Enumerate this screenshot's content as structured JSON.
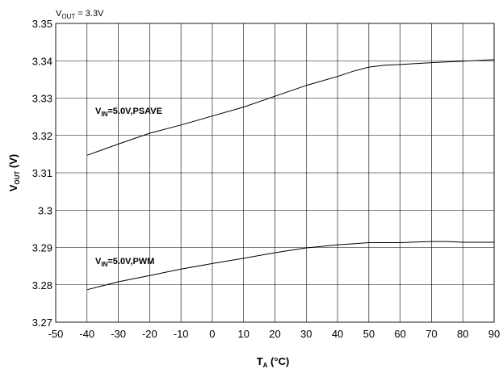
{
  "chart_data": {
    "type": "line",
    "annotation": {
      "main": "V",
      "sub": "OUT",
      "rest": " = 3.3V"
    },
    "xlabel": {
      "main": "T",
      "sub": "A",
      "rest": " (°C)"
    },
    "ylabel": {
      "main": "V",
      "sub": "OUT",
      "rest": " (V)"
    },
    "xlim": [
      -50,
      90
    ],
    "ylim": [
      3.27,
      3.35
    ],
    "x_ticks": [
      -50,
      -40,
      -30,
      -20,
      -10,
      0,
      10,
      20,
      30,
      40,
      50,
      60,
      70,
      80,
      90
    ],
    "x_tick_labels": [
      "-50",
      "-40",
      "-30",
      "-20",
      "-10",
      "0",
      "10",
      "20",
      "30",
      "40",
      "50",
      "60",
      "70",
      "80",
      "90"
    ],
    "y_ticks": [
      3.27,
      3.28,
      3.29,
      3.3,
      3.31,
      3.32,
      3.33,
      3.34,
      3.35
    ],
    "y_tick_labels": [
      "3.27",
      "3.28",
      "3.29",
      "3.3",
      "3.31",
      "3.32",
      "3.33",
      "3.34",
      "3.35"
    ],
    "grid": true,
    "series": [
      {
        "label": {
          "main": "V",
          "sub": "IN",
          "rest": "=5.0V,PSAVE"
        },
        "x": [
          -40,
          -30,
          -20,
          -10,
          0,
          10,
          20,
          30,
          40,
          45,
          50,
          55,
          60,
          70,
          80,
          90
        ],
        "y": [
          3.3147,
          3.3177,
          3.3206,
          3.3228,
          3.3252,
          3.3276,
          3.3305,
          3.3334,
          3.3358,
          3.3372,
          3.3383,
          3.3388,
          3.339,
          3.3395,
          3.3399,
          3.3403
        ]
      },
      {
        "label": {
          "main": "V",
          "sub": "IN",
          "rest": "=5.0V,PWM"
        },
        "x": [
          -40,
          -30,
          -20,
          -10,
          0,
          10,
          20,
          30,
          40,
          50,
          60,
          70,
          75,
          80,
          90
        ],
        "y": [
          3.2787,
          3.2808,
          3.2825,
          3.2842,
          3.2857,
          3.2871,
          3.2886,
          3.2899,
          3.2907,
          3.2913,
          3.2913,
          3.2916,
          3.2916,
          3.2914,
          3.2914
        ]
      }
    ]
  }
}
